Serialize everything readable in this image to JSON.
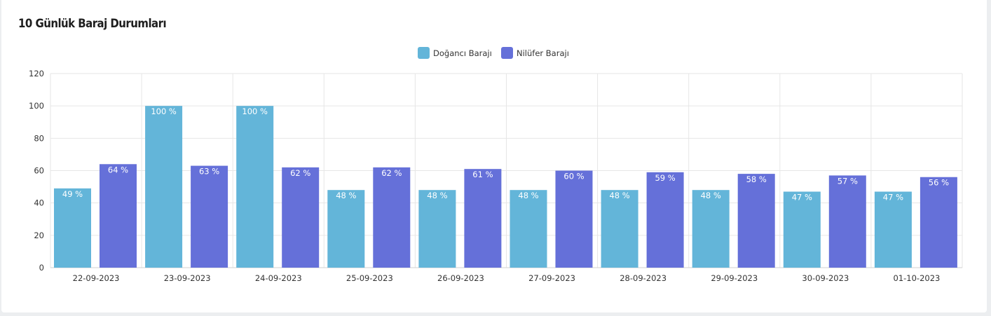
{
  "title": "10 Günlük Baraj Durumları",
  "chart_data": {
    "type": "bar",
    "title": "10 Günlük Baraj Durumları",
    "categories": [
      "22-09-2023",
      "23-09-2023",
      "24-09-2023",
      "25-09-2023",
      "26-09-2023",
      "27-09-2023",
      "28-09-2023",
      "29-09-2023",
      "30-09-2023",
      "01-10-2023"
    ],
    "series": [
      {
        "name": "Doğancı Barajı",
        "color": "#63b5d9",
        "values": [
          49,
          100,
          100,
          48,
          48,
          48,
          48,
          48,
          47,
          47
        ]
      },
      {
        "name": "Nilüfer Barajı",
        "color": "#6570d9",
        "values": [
          64,
          63,
          62,
          62,
          61,
          60,
          59,
          58,
          57,
          56
        ]
      }
    ],
    "label_suffix": " %",
    "ylim": [
      0,
      120
    ],
    "yticks": [
      0,
      20,
      40,
      60,
      80,
      100,
      120
    ],
    "xlabel": "",
    "ylabel": "",
    "grid": true,
    "legend": "top-center"
  }
}
